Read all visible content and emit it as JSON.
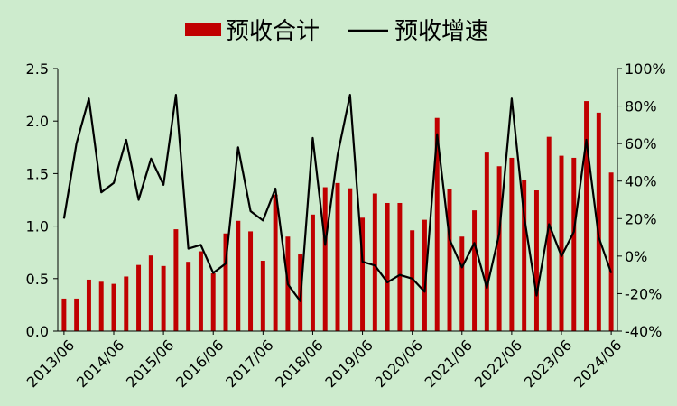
{
  "chart_data": {
    "type": "bar+line",
    "legend": {
      "placement": "top",
      "bar_label": "预收合计",
      "line_label": "预收增速"
    },
    "colors": {
      "bar": "#c00000",
      "line": "#000000",
      "background": "#cdebcd"
    },
    "y_left": {
      "min": 0,
      "max": 2.5,
      "ticks": [
        "0.0",
        "0.5",
        "1.0",
        "1.5",
        "2.0",
        "2.5"
      ]
    },
    "y_right": {
      "min": -40,
      "max": 100,
      "ticks": [
        "-40%",
        "-20%",
        "0%",
        "20%",
        "40%",
        "60%",
        "80%",
        "100%"
      ]
    },
    "x_tick_labels": [
      "2013/06",
      "2014/06",
      "2015/06",
      "2016/06",
      "2017/06",
      "2018/06",
      "2019/06",
      "2020/06",
      "2021/06",
      "2022/06",
      "2023/06",
      "2024/06"
    ],
    "grid": false,
    "series": [
      {
        "name": "预收合计",
        "type": "bar",
        "axis": "left",
        "values": [
          0.31,
          0.31,
          0.49,
          0.47,
          0.45,
          0.52,
          0.63,
          0.72,
          0.62,
          0.97,
          0.66,
          0.76,
          0.55,
          0.93,
          1.05,
          0.95,
          0.67,
          1.3,
          0.9,
          0.73,
          1.11,
          1.37,
          1.41,
          1.36,
          1.08,
          1.31,
          1.22,
          1.22,
          0.96,
          1.06,
          2.03,
          1.35,
          0.9,
          1.15,
          1.7,
          1.57,
          1.65,
          1.44,
          1.34,
          1.85,
          1.67,
          1.65,
          2.19,
          2.08,
          1.51
        ]
      },
      {
        "name": "预收增速",
        "type": "line",
        "axis": "right",
        "values": [
          20,
          60,
          84,
          34,
          39,
          62,
          30,
          52,
          38,
          86,
          4,
          6,
          -9,
          -4,
          58,
          24,
          19,
          36,
          -15,
          -24,
          63,
          6,
          54,
          86,
          -3,
          -5,
          -14,
          -10,
          -12,
          -19,
          65,
          9,
          -6,
          7,
          -17,
          12,
          84,
          21,
          -21,
          17,
          0,
          13,
          62,
          10,
          -9
        ]
      }
    ]
  }
}
